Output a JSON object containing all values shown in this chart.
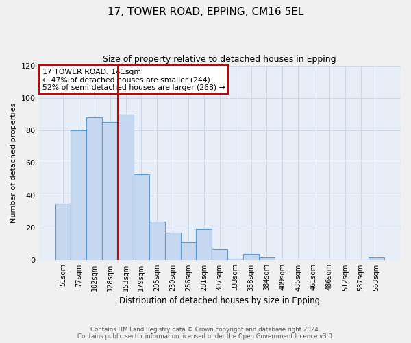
{
  "title": "17, TOWER ROAD, EPPING, CM16 5EL",
  "subtitle": "Size of property relative to detached houses in Epping",
  "xlabel": "Distribution of detached houses by size in Epping",
  "ylabel": "Number of detached properties",
  "bin_labels": [
    "51sqm",
    "77sqm",
    "102sqm",
    "128sqm",
    "153sqm",
    "179sqm",
    "205sqm",
    "230sqm",
    "256sqm",
    "281sqm",
    "307sqm",
    "333sqm",
    "358sqm",
    "384sqm",
    "409sqm",
    "435sqm",
    "461sqm",
    "486sqm",
    "512sqm",
    "537sqm",
    "563sqm"
  ],
  "bar_heights": [
    35,
    80,
    88,
    85,
    90,
    53,
    24,
    17,
    11,
    19,
    7,
    1,
    4,
    2,
    0,
    0,
    0,
    0,
    0,
    0,
    2
  ],
  "bar_color": "#c5d8f0",
  "bar_edge_color": "#5b9bd5",
  "property_line_x": 3.5,
  "property_line_color": "#cc0000",
  "annotation_title": "17 TOWER ROAD: 141sqm",
  "annotation_line1": "← 47% of detached houses are smaller (244)",
  "annotation_line2": "52% of semi-detached houses are larger (268) →",
  "annotation_box_facecolor": "#ffffff",
  "annotation_box_edgecolor": "#cc0000",
  "ylim": [
    0,
    120
  ],
  "yticks": [
    0,
    20,
    40,
    60,
    80,
    100,
    120
  ],
  "footer_line1": "Contains HM Land Registry data © Crown copyright and database right 2024.",
  "footer_line2": "Contains public sector information licensed under the Open Government Licence v3.0.",
  "grid_color": "#cdd6e8",
  "background_color": "#e8eef8",
  "fig_facecolor": "#f0f0f0"
}
